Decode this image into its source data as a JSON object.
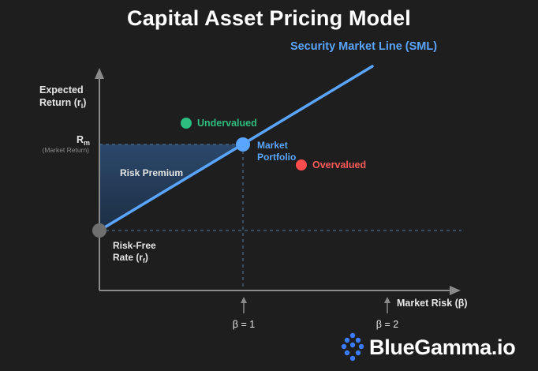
{
  "title": "Capital Asset Pricing Model",
  "sml_label": "Security Market Line (SML)",
  "y_axis_label": [
    "Expected",
    "Return (r",
    "i",
    ")"
  ],
  "x_axis_label": "Market Risk (β)",
  "rm_label": "R",
  "rm_sub": "m",
  "rm_note": "(Market Return)",
  "risk_premium": "Risk Premium",
  "risk_free": [
    "Risk-Free",
    "Rate (r",
    "f",
    ")"
  ],
  "market_portfolio": [
    "Market",
    "Portfolio"
  ],
  "undervalued": "Undervalued",
  "overvalued": "Overvalued",
  "beta1": "β = 1",
  "beta2": "β = 2",
  "brand": "BlueGamma.io",
  "colors": {
    "sml": "#5aa5ff",
    "undervalued": "#2dbd7e",
    "overvalued": "#ff4d4d",
    "risk_free_point": "#6f6f6f",
    "axis": "#8a8a8a",
    "dashed": "#4a6a8f"
  }
}
